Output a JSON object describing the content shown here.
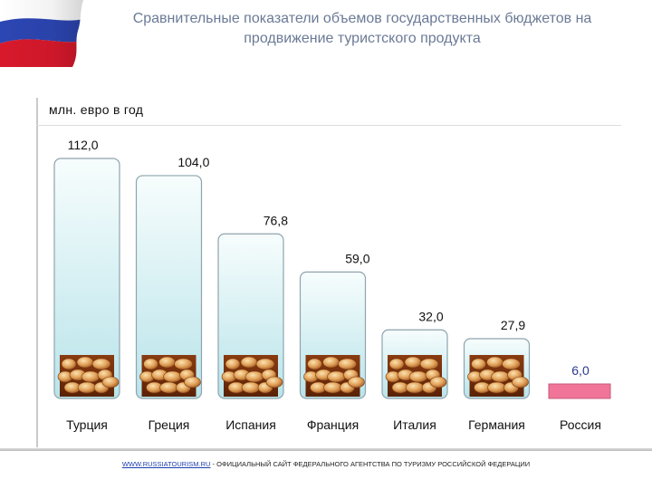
{
  "header": {
    "title_line1": "Сравнительные показатели объемов государственных бюджетов на",
    "title_line2": "продвижение туристского продукта"
  },
  "colors": {
    "bar_fill_top": "#f7fdfd",
    "bar_fill_bottom": "#b9e4ea",
    "bar_stroke": "#8fa4ad",
    "russia_bar": "#f07598",
    "flag_white": "#ffffff",
    "flag_blue": "#2c46b3",
    "flag_red": "#d8192c"
  },
  "chart_data": {
    "type": "bar",
    "title": "Сравнительные показатели объемов государственных бюджетов на продвижение туристского продукта",
    "ylabel": "млн. евро в год",
    "xlabel": "",
    "categories": [
      "Турция",
      "Греция",
      "Испания",
      "Франция",
      "Италия",
      "Германия",
      "Россия"
    ],
    "values": [
      112.0,
      104.0,
      76.8,
      59.0,
      32.0,
      27.9,
      6.0
    ],
    "value_labels": [
      "112,0",
      "104,0",
      "76,8",
      "59,0",
      "32,0",
      "27,9",
      "6,0"
    ],
    "ylim": [
      0,
      112
    ],
    "grid": false,
    "legend": "none",
    "highlight_category": "Россия"
  },
  "footer": {
    "link_text": "WWW.RUSSIATOURISM.RU",
    "text": " - ОФИЦИАЛЬНЫЙ САЙТ ФЕДЕРАЛЬНОГО АГЕНТСТВА ПО ТУРИЗМУ РОССИЙСКОЙ ФЕДЕРАЦИИ"
  }
}
